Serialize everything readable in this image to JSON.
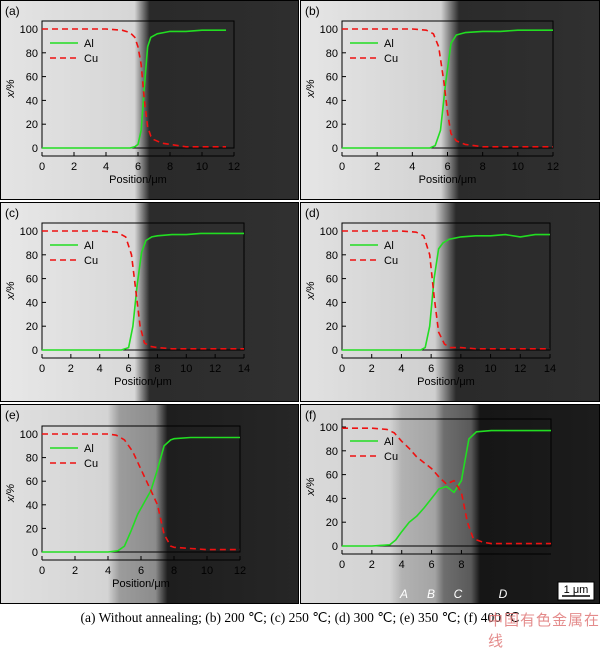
{
  "figure_caption": "(a) Without annealing; (b) 200 ℃; (c) 250 ℃; (d) 300 ℃; (e) 350 ℃; (f) 400 ℃",
  "watermark": "中国有色金属在线",
  "scale_bar_label": "1 μm",
  "zone_labels": [
    "A",
    "B",
    "C",
    "D"
  ],
  "colors": {
    "al": "#22dd22",
    "cu": "#ee1111"
  },
  "chart_data": [
    {
      "panel": "(a)",
      "type": "line",
      "xlabel": "Position/μm",
      "ylabel": "x/%",
      "xlim": [
        0,
        12
      ],
      "ylim": [
        0,
        100
      ],
      "xticks": [
        0,
        2,
        4,
        6,
        8,
        10,
        12
      ],
      "yticks": [
        0,
        20,
        40,
        60,
        80,
        100
      ],
      "legend": "upper-left",
      "series": [
        {
          "name": "Al",
          "style": "solid",
          "x": [
            0,
            2,
            4,
            5.5,
            5.8,
            6.0,
            6.2,
            6.4,
            6.6,
            6.8,
            7.2,
            7.6,
            8,
            9,
            10,
            11,
            11.5
          ],
          "y": [
            0,
            0,
            0,
            0,
            1,
            3,
            15,
            52,
            85,
            93,
            96,
            97,
            98,
            98,
            99,
            99,
            99
          ]
        },
        {
          "name": "Cu",
          "style": "dashed",
          "x": [
            0,
            2,
            4,
            5.0,
            5.5,
            5.8,
            6.0,
            6.2,
            6.4,
            6.6,
            6.8,
            7.0,
            7.5,
            8,
            9,
            10,
            11,
            11.5
          ],
          "y": [
            100,
            100,
            100,
            99,
            97,
            93,
            85,
            70,
            40,
            18,
            10,
            7,
            4,
            3,
            1,
            1,
            1,
            1
          ]
        }
      ]
    },
    {
      "panel": "(b)",
      "type": "line",
      "xlabel": "Position/μm",
      "ylabel": "x/%",
      "xlim": [
        0,
        12
      ],
      "ylim": [
        0,
        100
      ],
      "xticks": [
        0,
        2,
        4,
        6,
        8,
        10,
        12
      ],
      "yticks": [
        0,
        20,
        40,
        60,
        80,
        100
      ],
      "legend": "upper-left",
      "series": [
        {
          "name": "Al",
          "style": "solid",
          "x": [
            0,
            2,
            4,
            5.0,
            5.3,
            5.6,
            5.9,
            6.2,
            6.5,
            7.0,
            8,
            9,
            10,
            11,
            12
          ],
          "y": [
            0,
            0,
            0,
            0,
            2,
            15,
            55,
            88,
            95,
            97,
            98,
            98,
            99,
            99,
            99
          ]
        },
        {
          "name": "Cu",
          "style": "dashed",
          "x": [
            0,
            2,
            4,
            4.8,
            5.2,
            5.5,
            5.8,
            6.0,
            6.2,
            6.5,
            7.0,
            7.5,
            8,
            9,
            10,
            11,
            12
          ],
          "y": [
            100,
            100,
            100,
            99,
            96,
            85,
            55,
            30,
            12,
            6,
            3,
            2,
            1,
            1,
            1,
            1,
            1
          ]
        }
      ]
    },
    {
      "panel": "(c)",
      "type": "line",
      "xlabel": "Position/μm",
      "ylabel": "x/%",
      "xlim": [
        0,
        14
      ],
      "ylim": [
        0,
        100
      ],
      "xticks": [
        0,
        2,
        4,
        6,
        8,
        10,
        12,
        14
      ],
      "yticks": [
        0,
        20,
        40,
        60,
        80,
        100
      ],
      "legend": "upper-left",
      "series": [
        {
          "name": "Al",
          "style": "solid",
          "x": [
            0,
            2,
            4,
            5.5,
            6.0,
            6.3,
            6.6,
            6.9,
            7.2,
            7.6,
            8,
            9,
            10,
            11,
            12,
            13,
            14
          ],
          "y": [
            0,
            0,
            0,
            0,
            2,
            20,
            55,
            82,
            92,
            95,
            96,
            97,
            97,
            98,
            98,
            98,
            98
          ]
        },
        {
          "name": "Cu",
          "style": "dashed",
          "x": [
            0,
            2,
            4,
            5.2,
            5.8,
            6.2,
            6.5,
            6.8,
            7.1,
            7.5,
            8,
            9,
            10,
            11,
            12,
            13,
            14
          ],
          "y": [
            100,
            100,
            100,
            99,
            95,
            80,
            50,
            20,
            6,
            3,
            2,
            1,
            1,
            1,
            1,
            1,
            1
          ]
        }
      ]
    },
    {
      "panel": "(d)",
      "type": "line",
      "xlabel": "Position/μm",
      "ylabel": "x/%",
      "xlim": [
        0,
        14
      ],
      "ylim": [
        0,
        100
      ],
      "xticks": [
        0,
        2,
        4,
        6,
        8,
        10,
        12,
        14
      ],
      "yticks": [
        0,
        20,
        40,
        60,
        80,
        100
      ],
      "legend": "upper-left",
      "series": [
        {
          "name": "Al",
          "style": "solid",
          "x": [
            0,
            2,
            4,
            5.3,
            5.6,
            5.9,
            6.2,
            6.5,
            6.8,
            7.2,
            8,
            9,
            10,
            11,
            12,
            13,
            14
          ],
          "y": [
            0,
            0,
            0,
            0,
            2,
            20,
            60,
            85,
            90,
            93,
            95,
            96,
            96,
            97,
            95,
            97,
            97
          ]
        },
        {
          "name": "Cu",
          "style": "dashed",
          "x": [
            0,
            2,
            4,
            5.0,
            5.5,
            5.9,
            6.2,
            6.5,
            6.9,
            7.3,
            8,
            9,
            10,
            11,
            12,
            13,
            14
          ],
          "y": [
            100,
            100,
            100,
            99,
            96,
            80,
            45,
            15,
            5,
            2,
            2,
            1,
            1,
            1,
            1,
            1,
            1
          ]
        }
      ]
    },
    {
      "panel": "(e)",
      "type": "line",
      "xlabel": "Position/μm",
      "ylabel": "x/%",
      "xlim": [
        0,
        12
      ],
      "ylim": [
        0,
        100
      ],
      "xticks": [
        0,
        2,
        4,
        6,
        8,
        10,
        12
      ],
      "yticks": [
        0,
        20,
        40,
        60,
        80,
        100
      ],
      "legend": "upper-left",
      "series": [
        {
          "name": "Al",
          "style": "solid",
          "x": [
            0,
            2,
            4,
            4.6,
            5.0,
            5.4,
            5.8,
            6.2,
            6.6,
            7.0,
            7.4,
            7.8,
            8,
            9,
            10,
            11,
            12
          ],
          "y": [
            0,
            0,
            0,
            1,
            5,
            18,
            32,
            42,
            52,
            70,
            90,
            95,
            96,
            97,
            97,
            97,
            97
          ]
        },
        {
          "name": "Cu",
          "style": "dashed",
          "x": [
            0,
            2,
            4,
            4.5,
            5.0,
            5.5,
            6.0,
            6.5,
            7.0,
            7.4,
            7.8,
            8,
            9,
            10,
            11,
            12
          ],
          "y": [
            100,
            100,
            100,
            99,
            95,
            85,
            70,
            55,
            40,
            15,
            5,
            4,
            3,
            2,
            2,
            2
          ]
        }
      ]
    },
    {
      "panel": "(f)",
      "type": "line",
      "xlabel": "",
      "ylabel": "x/%",
      "xlim": [
        0,
        14
      ],
      "ylim": [
        0,
        100
      ],
      "xticks": [
        0,
        2,
        4,
        6,
        8
      ],
      "yticks": [
        0,
        20,
        40,
        60,
        80,
        100
      ],
      "legend": "upper-left",
      "series": [
        {
          "name": "Al",
          "style": "solid",
          "x": [
            0,
            2,
            3.2,
            3.6,
            4.0,
            4.5,
            5.0,
            5.5,
            6.0,
            6.5,
            7.0,
            7.5,
            8.0,
            8.5,
            9.0,
            10,
            11,
            12,
            13,
            14
          ],
          "y": [
            0,
            0,
            1,
            5,
            12,
            20,
            25,
            32,
            40,
            48,
            50,
            45,
            55,
            90,
            96,
            97,
            97,
            97,
            97,
            97
          ]
        },
        {
          "name": "Cu",
          "style": "dashed",
          "x": [
            0,
            2,
            3.0,
            3.5,
            4.0,
            4.5,
            5.0,
            5.5,
            6.0,
            6.5,
            7.0,
            7.5,
            8.0,
            8.4,
            8.8,
            9.5,
            10,
            11,
            12,
            13,
            14
          ],
          "y": [
            99,
            99,
            98,
            95,
            88,
            82,
            75,
            70,
            65,
            58,
            52,
            55,
            45,
            20,
            6,
            3,
            2,
            2,
            2,
            2,
            2
          ]
        }
      ]
    }
  ]
}
